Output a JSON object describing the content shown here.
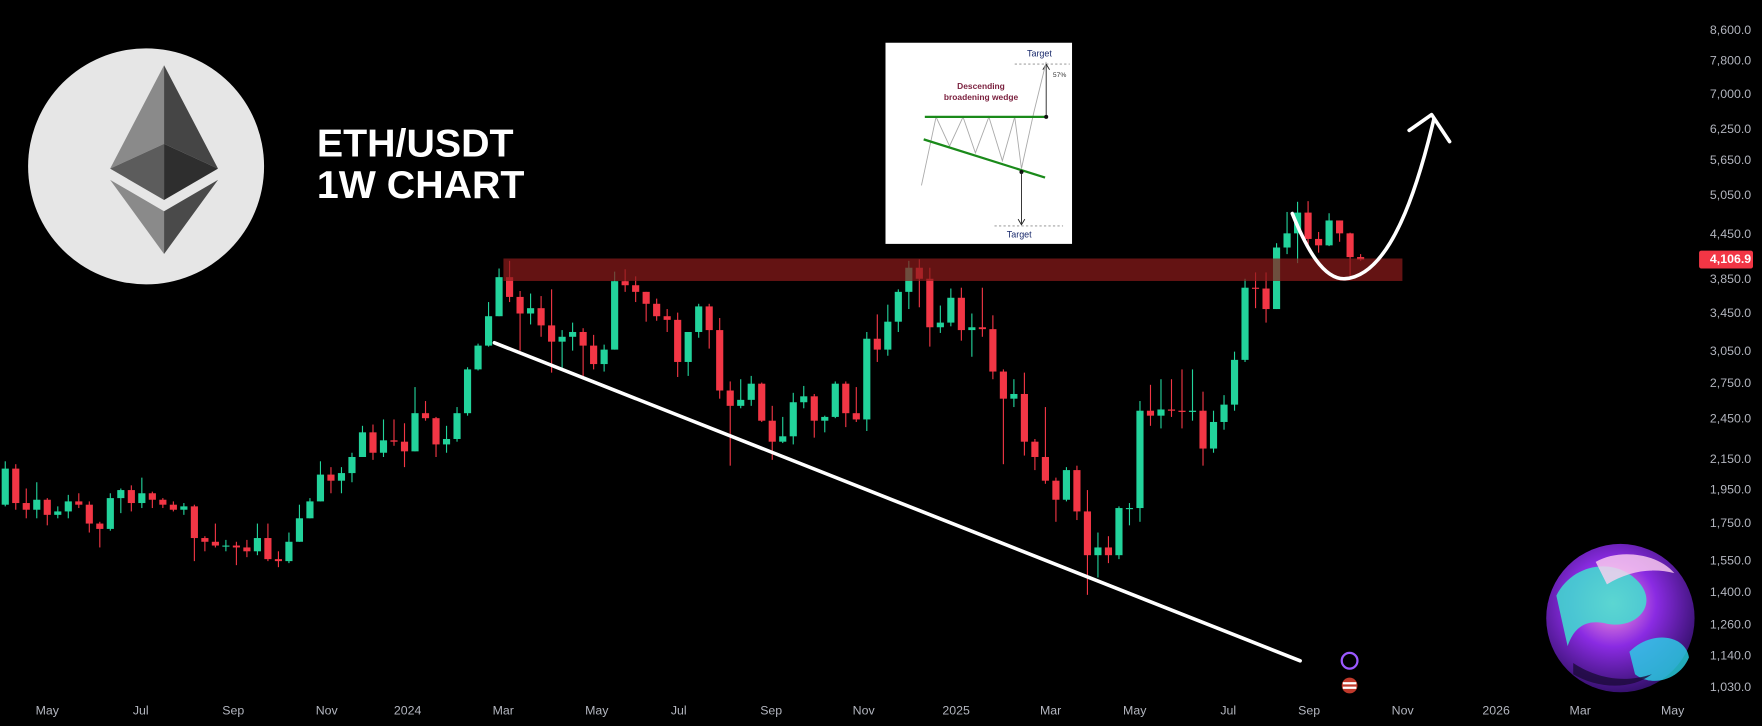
{
  "chart_data": {
    "type": "candlestick",
    "title": [
      "ETH/USDT",
      "1W CHART"
    ],
    "open": [
      1860,
      2090,
      1870,
      1830,
      1890,
      1800,
      1820,
      1880,
      1860,
      1750,
      1720,
      1900,
      1950,
      1870,
      1930,
      1890,
      1860,
      1830,
      1850,
      1670,
      1650,
      1630,
      1630,
      1620,
      1600,
      1670,
      1560,
      1550,
      1650,
      1780,
      1880,
      2050,
      2010,
      2060,
      2170,
      2350,
      2200,
      2290,
      2280,
      2210,
      2500,
      2460,
      2260,
      2300,
      2500,
      2880,
      3110,
      3420,
      3880,
      3640,
      3450,
      3510,
      3320,
      3150,
      3200,
      3250,
      3110,
      2930,
      3070,
      3830,
      3780,
      3700,
      3560,
      3420,
      3380,
      2950,
      3250,
      3530,
      3270,
      2690,
      2560,
      2610,
      2750,
      2440,
      2280,
      2320,
      2590,
      2640,
      2440,
      2470,
      2750,
      2500,
      2450,
      3180,
      3070,
      3360,
      3700,
      4000,
      3860,
      3300,
      3350,
      3630,
      3270,
      3300,
      3280,
      2860,
      2620,
      2660,
      2280,
      2170,
      2010,
      1890,
      2080,
      1820,
      1580,
      1620,
      1580,
      1840,
      1840,
      2520,
      2480,
      2530,
      2520,
      2510,
      2520,
      2230,
      2430,
      2570,
      2970,
      3750,
      3740,
      3500,
      4270,
      4470,
      4780,
      4390,
      4300,
      4660,
      4470,
      4140
    ],
    "high": [
      2140,
      2120,
      1960,
      2000,
      1900,
      1850,
      1920,
      1930,
      1880,
      1760,
      1930,
      1960,
      1980,
      2030,
      1940,
      1900,
      1880,
      1870,
      1860,
      1680,
      1750,
      1660,
      1650,
      1660,
      1750,
      1750,
      1600,
      1700,
      1860,
      1900,
      2140,
      2100,
      2100,
      2200,
      2400,
      2410,
      2450,
      2450,
      2420,
      2720,
      2600,
      2470,
      2400,
      2550,
      2900,
      3130,
      3580,
      3990,
      4090,
      3710,
      3680,
      3650,
      3730,
      3270,
      3350,
      3290,
      3220,
      3120,
      3950,
      3980,
      3890,
      3700,
      3620,
      3500,
      3460,
      3250,
      3560,
      3560,
      3400,
      2770,
      2790,
      2820,
      2760,
      2560,
      2470,
      2670,
      2730,
      2660,
      2480,
      2770,
      2770,
      2720,
      3250,
      3440,
      3550,
      3730,
      4090,
      4110,
      4000,
      3540,
      3740,
      3750,
      3450,
      3750,
      3430,
      2880,
      2790,
      2850,
      2300,
      2550,
      2030,
      2100,
      2110,
      1950,
      1700,
      1680,
      1850,
      1870,
      2600,
      2740,
      2790,
      2790,
      2880,
      2880,
      2680,
      2520,
      2650,
      3050,
      3860,
      3940,
      3940,
      4330,
      4790,
      4950,
      4960,
      4490,
      4770,
      4660,
      4480,
      4180
    ],
    "low": [
      1850,
      1830,
      1780,
      1780,
      1740,
      1780,
      1780,
      1840,
      1700,
      1620,
      1710,
      1810,
      1820,
      1840,
      1840,
      1840,
      1820,
      1800,
      1550,
      1600,
      1620,
      1600,
      1530,
      1570,
      1580,
      1550,
      1520,
      1540,
      1650,
      1780,
      1880,
      1930,
      1930,
      2000,
      2170,
      2150,
      2170,
      2250,
      2100,
      2210,
      2440,
      2170,
      2200,
      2280,
      2480,
      2870,
      3100,
      3420,
      3580,
      3060,
      3330,
      3200,
      2850,
      2870,
      3060,
      2810,
      2880,
      2860,
      3070,
      3700,
      3580,
      3360,
      3370,
      3250,
      2810,
      2820,
      3190,
      3080,
      2620,
      2110,
      2540,
      2560,
      2430,
      2150,
      2270,
      2260,
      2540,
      2310,
      2350,
      2460,
      2390,
      2430,
      2360,
      2950,
      3010,
      3250,
      3500,
      3520,
      3100,
      3240,
      3310,
      3160,
      3000,
      3200,
      2790,
      2120,
      2550,
      2180,
      2080,
      1990,
      1760,
      1880,
      1770,
      1390,
      1470,
      1540,
      1560,
      1740,
      1760,
      2400,
      2380,
      2470,
      2380,
      2440,
      2110,
      2200,
      2370,
      2520,
      2950,
      3510,
      3350,
      3500,
      4180,
      4060,
      4260,
      4200,
      4290,
      4350,
      3850,
      4090
    ],
    "close": [
      2090,
      1870,
      1830,
      1890,
      1800,
      1820,
      1880,
      1860,
      1750,
      1720,
      1900,
      1950,
      1870,
      1930,
      1890,
      1860,
      1830,
      1850,
      1670,
      1650,
      1630,
      1630,
      1620,
      1600,
      1670,
      1560,
      1550,
      1650,
      1780,
      1880,
      2050,
      2010,
      2060,
      2170,
      2350,
      2200,
      2290,
      2280,
      2210,
      2500,
      2460,
      2260,
      2300,
      2500,
      2880,
      3110,
      3420,
      3880,
      3640,
      3450,
      3510,
      3320,
      3150,
      3200,
      3250,
      3110,
      2930,
      3070,
      3830,
      3780,
      3700,
      3560,
      3420,
      3380,
      2950,
      3250,
      3530,
      3270,
      2690,
      2560,
      2610,
      2750,
      2440,
      2280,
      2320,
      2590,
      2640,
      2440,
      2470,
      2750,
      2500,
      2450,
      3180,
      3070,
      3360,
      3700,
      4000,
      3860,
      3300,
      3350,
      3630,
      3270,
      3300,
      3280,
      2860,
      2620,
      2660,
      2280,
      2170,
      2010,
      1890,
      2080,
      1820,
      1580,
      1620,
      1580,
      1840,
      1840,
      2520,
      2480,
      2530,
      2520,
      2510,
      2520,
      2230,
      2430,
      2570,
      2970,
      3750,
      3740,
      3500,
      4270,
      4470,
      4780,
      4390,
      4300,
      4660,
      4470,
      4140,
      4106.9
    ],
    "up_color": "#22d39b",
    "down_color": "#f23645",
    "last_price_label": "4,106.9",
    "xlim": [
      -0.5,
      161
    ],
    "xticks": [
      {
        "value": 4.0,
        "label": "May"
      },
      {
        "value": 12.9,
        "label": "Jul"
      },
      {
        "value": 21.7,
        "label": "Sep"
      },
      {
        "value": 30.6,
        "label": "Nov"
      },
      {
        "value": 38.3,
        "label": "2024"
      },
      {
        "value": 47.4,
        "label": "Mar"
      },
      {
        "value": 56.3,
        "label": "May"
      },
      {
        "value": 64.1,
        "label": "Jul"
      },
      {
        "value": 72.9,
        "label": "Sep"
      },
      {
        "value": 81.7,
        "label": "Nov"
      },
      {
        "value": 90.5,
        "label": "2025"
      },
      {
        "value": 99.5,
        "label": "Mar"
      },
      {
        "value": 107.5,
        "label": "May"
      },
      {
        "value": 116.4,
        "label": "Jul"
      },
      {
        "value": 124.1,
        "label": "Sep"
      },
      {
        "value": 133.0,
        "label": "Nov"
      },
      {
        "value": 141.9,
        "label": "2026"
      },
      {
        "value": 149.9,
        "label": "Mar"
      },
      {
        "value": 158.7,
        "label": "May"
      }
    ],
    "ylim": [
      1000,
      9500
    ],
    "log_scale": true,
    "grid": false,
    "yticks": [
      {
        "value": 1030,
        "label": "1,030.0"
      },
      {
        "value": 1140,
        "label": "1,140.0"
      },
      {
        "value": 1260,
        "label": "1,260.0"
      },
      {
        "value": 1400,
        "label": "1,400.0"
      },
      {
        "value": 1550,
        "label": "1,550.0"
      },
      {
        "value": 1750,
        "label": "1,750.0"
      },
      {
        "value": 1950,
        "label": "1,950.0"
      },
      {
        "value": 2150,
        "label": "2,150.0"
      },
      {
        "value": 2450,
        "label": "2,450.0"
      },
      {
        "value": 2750,
        "label": "2,750.0"
      },
      {
        "value": 3050,
        "label": "3,050.0"
      },
      {
        "value": 3450,
        "label": "3,450.0"
      },
      {
        "value": 3850,
        "label": "3,850.0"
      },
      {
        "value": 4450,
        "label": "4,450.0"
      },
      {
        "value": 5050,
        "label": "5,050.0"
      },
      {
        "value": 5650,
        "label": "5,650.0"
      },
      {
        "value": 6250,
        "label": "6,250.0"
      },
      {
        "value": 7000,
        "label": "7,000.0"
      },
      {
        "value": 7800,
        "label": "7,800.0"
      },
      {
        "value": 8600,
        "label": "8,600.0"
      }
    ]
  },
  "inset": {
    "target_top": "Target",
    "percent": "57%",
    "label_line1": "Descending",
    "label_line2": "broadening wedge",
    "target_bottom": "Target"
  }
}
